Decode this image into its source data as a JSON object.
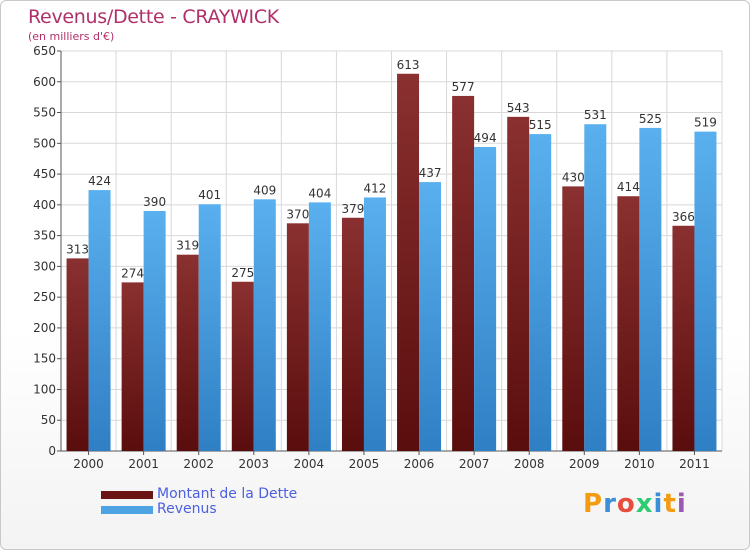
{
  "chart_data": {
    "type": "bar",
    "title": "Revenus/Dette - CRAYWICK",
    "subtitle": "(en milliers d'€)",
    "categories": [
      "2000",
      "2001",
      "2002",
      "2003",
      "2004",
      "2005",
      "2006",
      "2007",
      "2008",
      "2009",
      "2010",
      "2011"
    ],
    "series": [
      {
        "name": "Montant de la Dette",
        "color": "#7b1f1f",
        "values": [
          313,
          274,
          319,
          275,
          370,
          379,
          613,
          577,
          543,
          430,
          414,
          366
        ]
      },
      {
        "name": "Revenus",
        "color": "#4da3e4",
        "values": [
          424,
          390,
          401,
          409,
          404,
          412,
          437,
          494,
          515,
          531,
          525,
          519
        ]
      }
    ],
    "ylim": [
      0,
      650
    ],
    "yticks": [
      0,
      50,
      100,
      150,
      200,
      250,
      300,
      350,
      400,
      450,
      500,
      550,
      600,
      650
    ],
    "grid": true,
    "legend_position": "bottom-left"
  },
  "logo": {
    "text": "Proxiti",
    "colors": [
      "#f39c12",
      "#3a8fd8",
      "#e74c3c",
      "#2ecc71",
      "#3a8fd8",
      "#f39c12",
      "#9b59b6"
    ]
  }
}
